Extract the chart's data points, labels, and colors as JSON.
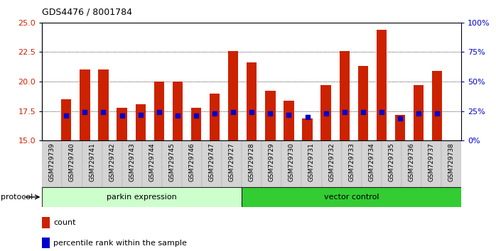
{
  "title": "GDS4476 / 8001784",
  "samples": [
    "GSM729739",
    "GSM729740",
    "GSM729741",
    "GSM729742",
    "GSM729743",
    "GSM729744",
    "GSM729745",
    "GSM729746",
    "GSM729747",
    "GSM729727",
    "GSM729728",
    "GSM729729",
    "GSM729730",
    "GSM729731",
    "GSM729732",
    "GSM729733",
    "GSM729734",
    "GSM729735",
    "GSM729736",
    "GSM729737",
    "GSM729738"
  ],
  "counts": [
    18.5,
    21.0,
    21.0,
    17.8,
    18.1,
    20.0,
    20.0,
    17.8,
    19.0,
    22.6,
    21.6,
    19.2,
    18.4,
    16.9,
    19.7,
    22.6,
    21.3,
    24.4,
    17.2,
    19.7,
    20.9
  ],
  "percentiles": [
    17.1,
    17.4,
    17.4,
    17.1,
    17.2,
    17.4,
    17.1,
    17.1,
    17.3,
    17.4,
    17.4,
    17.3,
    17.2,
    17.0,
    17.3,
    17.4,
    17.4,
    17.4,
    16.9,
    17.3,
    17.3
  ],
  "parkin_count": 10,
  "vector_count": 11,
  "ylim": [
    15,
    25
  ],
  "yticks": [
    15,
    17.5,
    20,
    22.5,
    25
  ],
  "right_yticks": [
    0,
    25,
    50,
    75,
    100
  ],
  "bar_color": "#cc2200",
  "percentile_color": "#0000cc",
  "parkin_bg": "#ccffcc",
  "vector_bg": "#33cc33",
  "protocol_label": "protocol",
  "parkin_label": "parkin expression",
  "vector_label": "vector control",
  "legend_count": "count",
  "legend_pct": "percentile rank within the sample",
  "bar_width": 0.55
}
